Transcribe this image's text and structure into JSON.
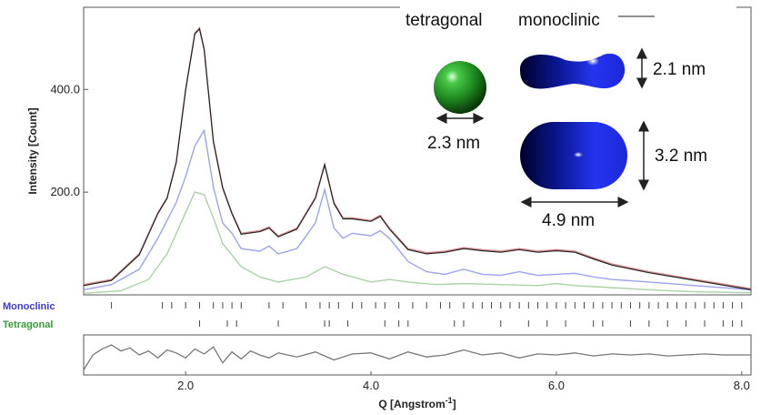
{
  "chart_data": {
    "type": "line",
    "ylabel": "Intensity [Count]",
    "xlabel_main": "Q [Angstrom",
    "xlabel_sup": "-1",
    "xlabel_tail": "]",
    "xlim": [
      0.9,
      8.1
    ],
    "ylim": [
      0,
      560
    ],
    "xticks": [
      "2.0",
      "4.0",
      "6.0",
      "8.0"
    ],
    "xtick_values": [
      2.0,
      4.0,
      6.0,
      8.0
    ],
    "yticks": [
      "200.0",
      "400.0"
    ],
    "ytick_values": [
      200,
      400
    ],
    "series": [
      {
        "color": "#d98a8a",
        "x": [
          0.9,
          1.2,
          1.5,
          1.7,
          1.8,
          1.9,
          2.0,
          2.1,
          2.15,
          2.2,
          2.3,
          2.4,
          2.5,
          2.6,
          2.8,
          2.9,
          3.0,
          3.2,
          3.4,
          3.5,
          3.6,
          3.7,
          3.8,
          4.0,
          4.1,
          4.2,
          4.4,
          4.6,
          4.8,
          5.0,
          5.2,
          5.4,
          5.6,
          5.8,
          6.0,
          6.2,
          6.4,
          6.6,
          7.0,
          7.5,
          8.1
        ],
        "values": [
          20,
          30,
          80,
          160,
          190,
          260,
          400,
          510,
          520,
          480,
          300,
          210,
          160,
          120,
          125,
          132,
          115,
          130,
          190,
          255,
          180,
          150,
          150,
          145,
          155,
          130,
          90,
          82,
          85,
          92,
          88,
          85,
          90,
          85,
          88,
          85,
          72,
          60,
          45,
          30,
          12
        ]
      },
      {
        "color": "#9aa4ee",
        "x": [
          0.9,
          1.2,
          1.5,
          1.7,
          1.8,
          1.9,
          2.0,
          2.1,
          2.2,
          2.3,
          2.4,
          2.5,
          2.6,
          2.8,
          2.9,
          3.0,
          3.2,
          3.4,
          3.5,
          3.6,
          3.7,
          3.8,
          4.0,
          4.1,
          4.2,
          4.4,
          4.6,
          4.8,
          5.0,
          5.2,
          5.4,
          5.6,
          5.8,
          6.0,
          6.2,
          6.4,
          6.6,
          7.0,
          7.5,
          8.1
        ],
        "values": [
          10,
          20,
          50,
          110,
          145,
          180,
          230,
          290,
          320,
          210,
          140,
          120,
          90,
          85,
          95,
          80,
          90,
          140,
          205,
          130,
          110,
          120,
          115,
          125,
          110,
          65,
          45,
          40,
          50,
          40,
          38,
          45,
          38,
          40,
          42,
          35,
          30,
          25,
          18,
          10
        ]
      },
      {
        "color": "#a9d3a5",
        "x": [
          0.9,
          1.3,
          1.6,
          1.8,
          2.0,
          2.1,
          2.2,
          2.3,
          2.4,
          2.6,
          2.8,
          3.0,
          3.3,
          3.5,
          3.7,
          4.0,
          4.2,
          4.4,
          4.7,
          5.0,
          5.4,
          5.8,
          6.0,
          6.2,
          6.5,
          7.0,
          7.5,
          8.1
        ],
        "values": [
          3,
          8,
          30,
          80,
          160,
          200,
          195,
          150,
          100,
          55,
          35,
          25,
          35,
          55,
          40,
          25,
          30,
          25,
          20,
          22,
          20,
          18,
          22,
          18,
          15,
          10,
          6,
          4
        ]
      },
      {
        "color": "#222222",
        "x": [
          0.9,
          1.2,
          1.5,
          1.7,
          1.8,
          1.9,
          2.0,
          2.1,
          2.15,
          2.2,
          2.3,
          2.4,
          2.5,
          2.6,
          2.8,
          2.9,
          3.0,
          3.2,
          3.4,
          3.5,
          3.6,
          3.7,
          3.8,
          4.0,
          4.1,
          4.2,
          4.4,
          4.6,
          4.8,
          5.0,
          5.2,
          5.4,
          5.6,
          5.8,
          6.0,
          6.2,
          6.4,
          6.6,
          7.0,
          7.5,
          8.1
        ],
        "values": [
          18,
          28,
          78,
          158,
          188,
          258,
          398,
          508,
          518,
          478,
          298,
          208,
          158,
          118,
          123,
          130,
          113,
          128,
          188,
          253,
          178,
          148,
          148,
          143,
          153,
          128,
          88,
          80,
          83,
          90,
          86,
          83,
          88,
          83,
          86,
          83,
          70,
          58,
          43,
          28,
          10
        ]
      }
    ],
    "phases": [
      {
        "label": "Monoclinic",
        "color": "#3b3bd6",
        "ticks": [
          1.2,
          1.75,
          1.85,
          2.0,
          2.15,
          2.3,
          2.4,
          2.5,
          2.6,
          2.9,
          3.05,
          3.3,
          3.45,
          3.55,
          3.65,
          3.8,
          3.9,
          4.05,
          4.15,
          4.3,
          4.45,
          4.6,
          4.75,
          4.85,
          5.0,
          5.1,
          5.2,
          5.3,
          5.4,
          5.5,
          5.6,
          5.7,
          5.8,
          5.9,
          6.0,
          6.1,
          6.2,
          6.3,
          6.4,
          6.5,
          6.6,
          6.7,
          6.8,
          6.9,
          7.0,
          7.1,
          7.2,
          7.3,
          7.4,
          7.5,
          7.6,
          7.7,
          7.8,
          7.9,
          8.0
        ]
      },
      {
        "label": "Tetragonal",
        "color": "#3a9a3a",
        "ticks": [
          2.15,
          2.45,
          2.55,
          3.0,
          3.5,
          3.55,
          3.75,
          4.15,
          4.3,
          4.4,
          4.9,
          5.0,
          5.4,
          5.7,
          5.9,
          6.1,
          6.4,
          6.5,
          6.8,
          7.0,
          7.2,
          7.4,
          7.6,
          7.8,
          7.9,
          8.0
        ]
      }
    ],
    "difference": {
      "color": "#777777",
      "x": [
        0.9,
        1.0,
        1.1,
        1.2,
        1.3,
        1.4,
        1.5,
        1.6,
        1.7,
        1.8,
        1.9,
        2.0,
        2.1,
        2.2,
        2.3,
        2.4,
        2.5,
        2.6,
        2.7,
        2.8,
        2.9,
        3.0,
        3.2,
        3.4,
        3.6,
        3.8,
        4.0,
        4.2,
        4.4,
        4.6,
        4.8,
        5.0,
        5.2,
        5.4,
        5.6,
        5.8,
        6.0,
        6.2,
        6.4,
        6.6,
        6.8,
        7.0,
        7.2,
        7.4,
        7.6,
        7.8,
        8.1
      ],
      "values": [
        -15,
        0,
        6,
        10,
        4,
        7,
        0,
        4,
        -3,
        5,
        2,
        -3,
        6,
        1,
        8,
        -8,
        3,
        -4,
        4,
        0,
        -3,
        2,
        -2,
        3,
        -5,
        1,
        2,
        -4,
        3,
        -2,
        0,
        5,
        0,
        2,
        -3,
        1,
        0,
        2,
        -1,
        1,
        0,
        1,
        -1,
        0,
        1,
        0,
        0
      ],
      "ylim": [
        -20,
        20
      ]
    }
  },
  "inset": {
    "label_tetragonal": "tetragonal",
    "label_monoclinic": "monoclinic",
    "tetragonal_size": "2.3 nm",
    "monoclinic_height_small": "2.1 nm",
    "monoclinic_height_large": "3.2 nm",
    "monoclinic_length": "4.9 nm",
    "sphere_color": "#2f9a2f",
    "monoclinic_color": "#1f2bd6"
  }
}
